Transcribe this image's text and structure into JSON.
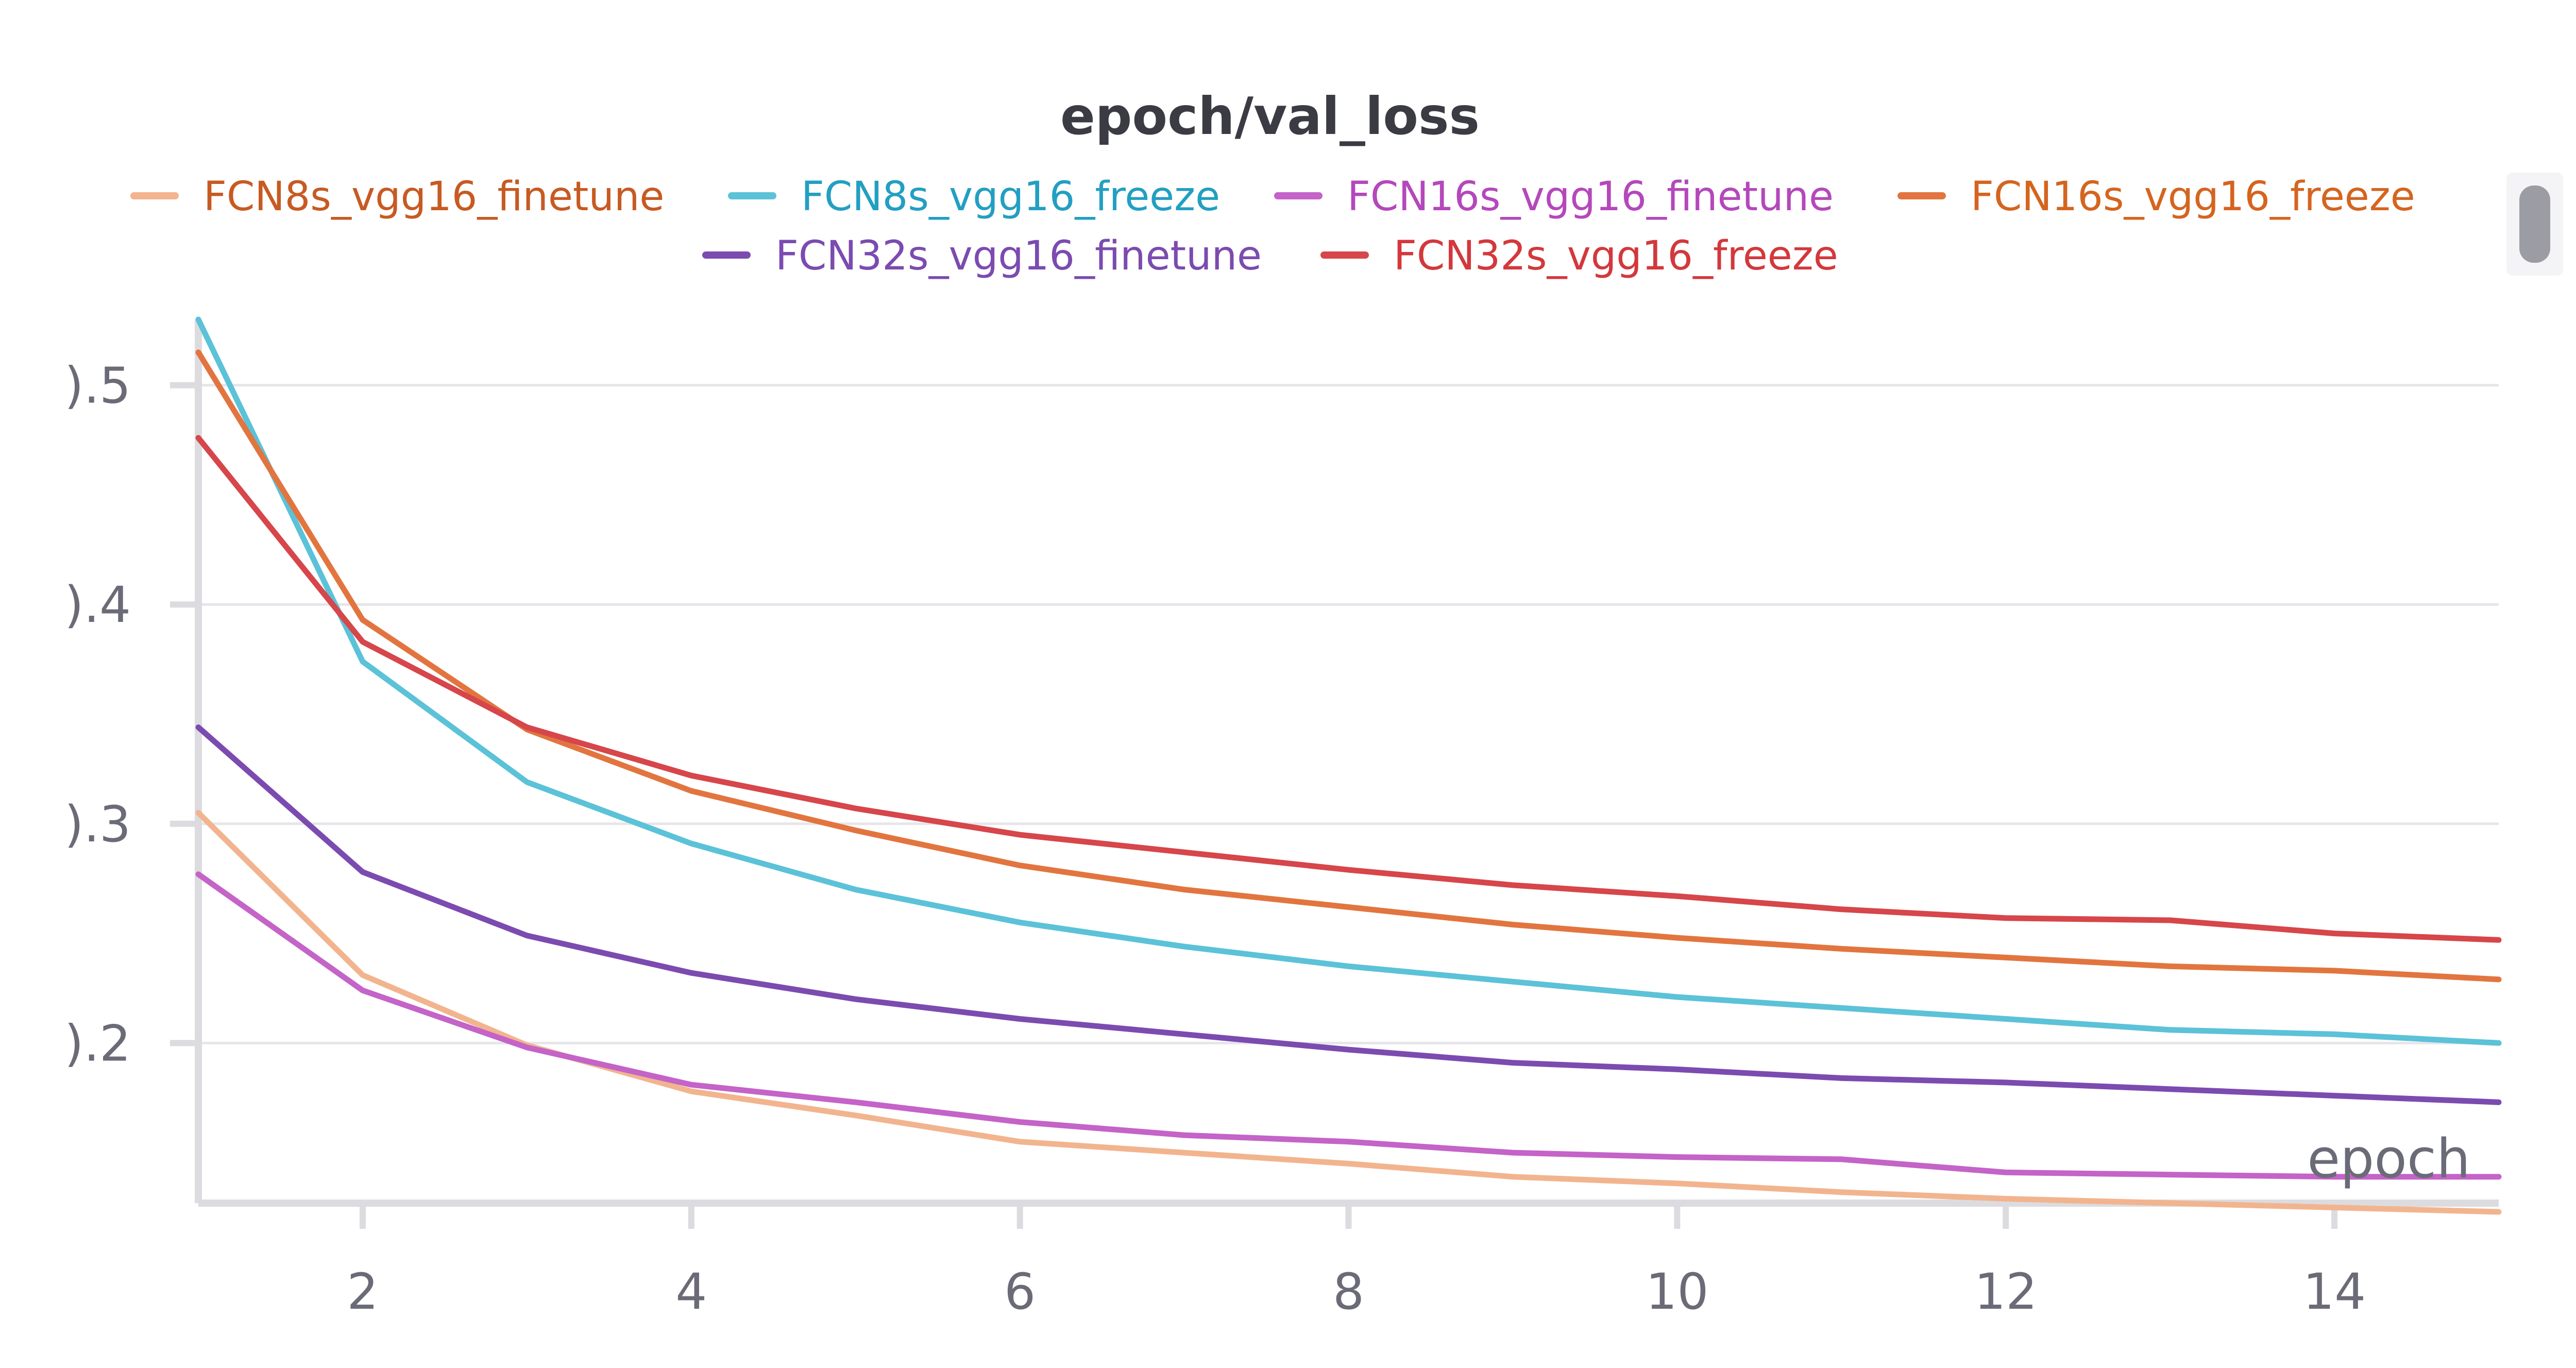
{
  "chart_data": {
    "type": "line",
    "title": "epoch/val_loss",
    "xlabel": "epoch",
    "ylabel": "",
    "xlim": [
      1,
      15
    ],
    "ylim": [
      0.127,
      0.53
    ],
    "xticks": [
      2,
      4,
      6,
      8,
      10,
      12,
      14
    ],
    "yticks": [
      0.2,
      0.3,
      0.4,
      0.5
    ],
    "ytick_labels": [
      ").2",
      ").3",
      ").4",
      ").5"
    ],
    "grid": true,
    "legend": "top",
    "x": [
      1,
      2,
      3,
      4,
      5,
      6,
      7,
      8,
      9,
      10,
      11,
      12,
      13,
      14,
      15
    ],
    "series": [
      {
        "name": "FCN8s_vgg16_finetune",
        "color": "#f2b48e",
        "label_color": "#c75a22",
        "values": [
          0.305,
          0.231,
          0.199,
          0.178,
          0.167,
          0.155,
          0.15,
          0.145,
          0.139,
          0.136,
          0.132,
          0.129,
          0.127,
          0.125,
          0.123
        ]
      },
      {
        "name": "FCN8s_vgg16_freeze",
        "color": "#5bc2d8",
        "label_color": "#229fc2",
        "values": [
          0.53,
          0.374,
          0.319,
          0.291,
          0.27,
          0.255,
          0.244,
          0.235,
          0.228,
          0.221,
          0.216,
          0.211,
          0.206,
          0.204,
          0.2
        ]
      },
      {
        "name": "FCN16s_vgg16_finetune",
        "color": "#c463c8",
        "label_color": "#b547bc",
        "values": [
          0.277,
          0.224,
          0.198,
          0.181,
          0.173,
          0.164,
          0.158,
          0.155,
          0.15,
          0.148,
          0.147,
          0.141,
          0.14,
          0.139,
          0.139
        ]
      },
      {
        "name": "FCN16s_vgg16_freeze",
        "color": "#e2753f",
        "label_color": "#d5641f",
        "values": [
          0.515,
          0.393,
          0.343,
          0.315,
          0.297,
          0.281,
          0.27,
          0.262,
          0.254,
          0.248,
          0.243,
          0.239,
          0.235,
          0.233,
          0.229
        ]
      },
      {
        "name": "FCN32s_vgg16_finetune",
        "color": "#7b4bb0",
        "label_color": "#7b4bb0",
        "values": [
          0.344,
          0.278,
          0.249,
          0.232,
          0.22,
          0.211,
          0.204,
          0.197,
          0.191,
          0.188,
          0.184,
          0.182,
          0.179,
          0.176,
          0.173
        ]
      },
      {
        "name": "FCN32s_vgg16_freeze",
        "color": "#d6464a",
        "label_color": "#d3383c",
        "values": [
          0.476,
          0.383,
          0.344,
          0.322,
          0.307,
          0.295,
          0.287,
          0.279,
          0.272,
          0.267,
          0.261,
          0.257,
          0.256,
          0.25,
          0.247
        ]
      }
    ]
  }
}
